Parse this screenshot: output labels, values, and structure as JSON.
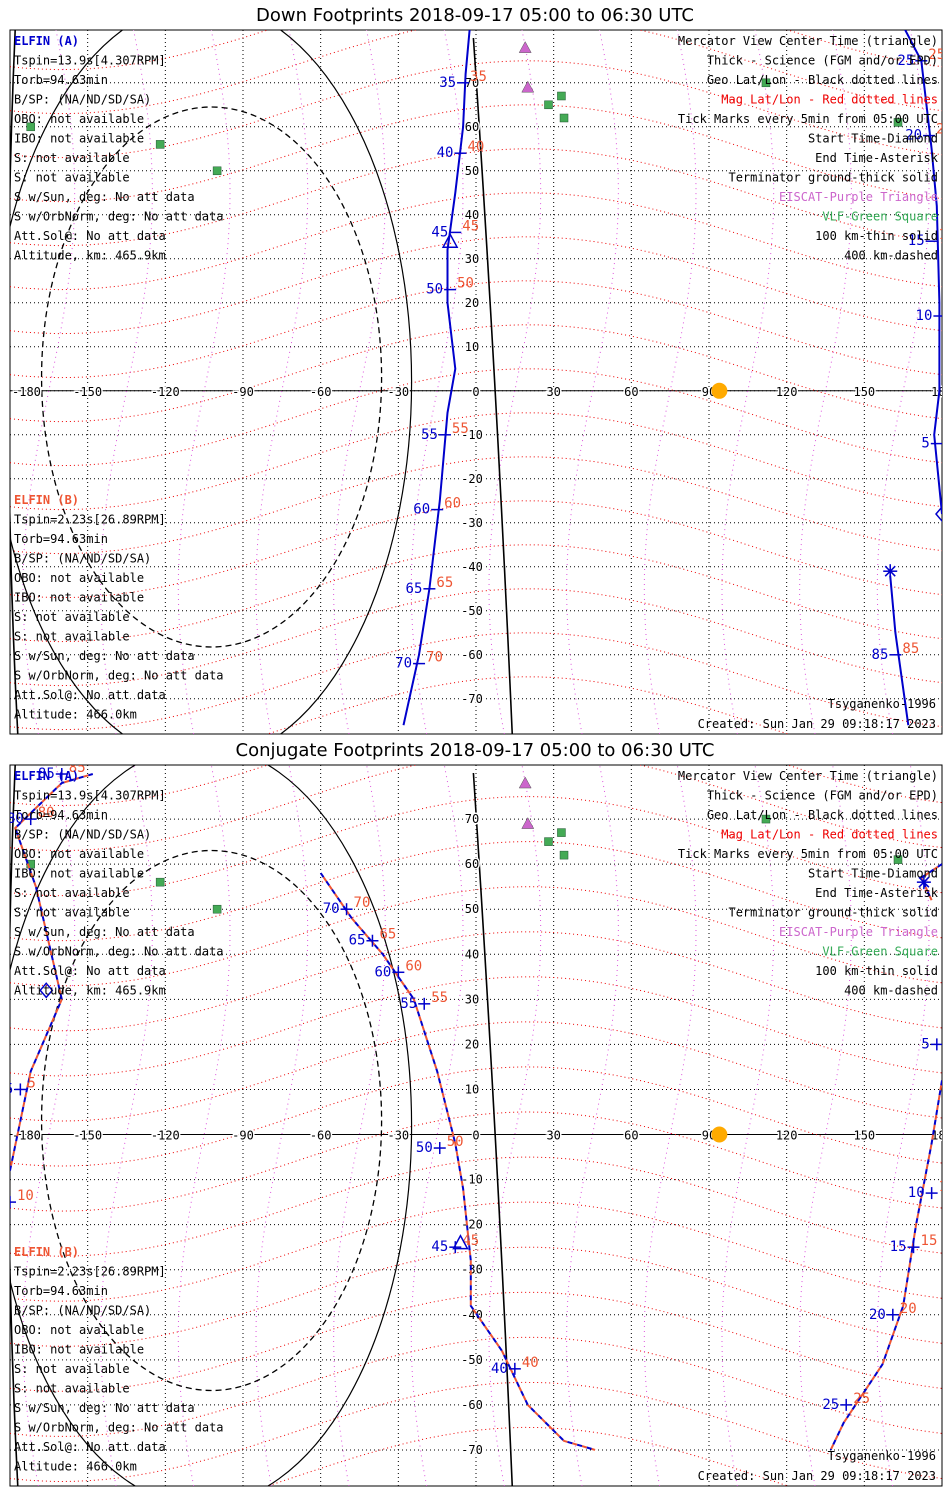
{
  "panels": [
    {
      "title": "Down Footprints 2018-09-17 05:00 to 06:30 UTC",
      "elfin_a": {
        "name": "ELFIN (A)",
        "lines": [
          "Tspin=13.9s[4.307RPM]",
          "Torb=94.63min",
          "B/SP: (NA/ND/SD/SA)",
          "OBO: not available",
          "IBO: not available",
          "S: not available",
          "S: not available",
          "S w/Sun, deg: No att data",
          "S w/OrbNorm, deg: No att data",
          "Att.Sol@: No att data",
          "Altitude, km: 465.9km"
        ]
      },
      "elfin_b": {
        "name": "ELFIN (B)",
        "lines": [
          "Tspin=2.23s[26.89RPM]",
          "Torb=94.63min",
          "B/SP: (NA/ND/SD/SA)",
          "OBO: not available",
          "IBO: not available",
          "S: not available",
          "S: not available",
          "S w/Sun, deg: No att data",
          "S w/OrbNorm, deg: No att data",
          "Att.Sol@: No att data",
          "Altitude: 466.0km"
        ]
      }
    },
    {
      "title": "Conjugate Footprints 2018-09-17 05:00 to 06:30 UTC",
      "elfin_a": {
        "name": "ELFIN (A)",
        "lines": [
          "Tspin=13.9s[4.307RPM]",
          "Torb=94.63min",
          "B/SP: (NA/ND/SD/SA)",
          "OBO: not available",
          "IBO: not available",
          "S: not available",
          "S: not available",
          "S w/Sun, deg: No att data",
          "S w/OrbNorm, deg: No att data",
          "Att.Sol@: No att data",
          "Altitude, km: 465.9km"
        ]
      },
      "elfin_b": {
        "name": "ELFIN (B)",
        "lines": [
          "Tspin=2.23s[26.89RPM]",
          "Torb=94.63min",
          "B/SP: (NA/ND/SD/SA)",
          "OBO: not available",
          "IBO: not available",
          "S: not available",
          "S: not available",
          "S w/Sun, deg: No att data",
          "S w/OrbNorm, deg: No att data",
          "Att.Sol@: No att data",
          "Altitude: 466.0km"
        ]
      }
    }
  ],
  "legend": [
    {
      "text": "Mercator View Center Time (triangle)",
      "color": "#000000"
    },
    {
      "text": "Thick - Science (FGM and/or EPD)",
      "color": "#000000"
    },
    {
      "text": "Geo Lat/Lon - Black dotted lines",
      "color": "#000000"
    },
    {
      "text": "Mag Lat/Lon - Red dotted lines",
      "color": "#ee0000"
    },
    {
      "text": "Tick Marks every 5min from 05:00 UTC",
      "color": "#000000"
    },
    {
      "text": "Start Time-Diamond",
      "color": "#000000"
    },
    {
      "text": "End Time-Asterisk",
      "color": "#000000"
    },
    {
      "text": "Terminator ground-thick solid",
      "color": "#000000"
    },
    {
      "text": "EISCAT-Purple Triangle",
      "color": "#cc66cc"
    },
    {
      "text": "VLF-Green Square",
      "color": "#33aa55"
    },
    {
      "text": "100 km-thin solid",
      "color": "#000000"
    },
    {
      "text": "400 km-dashed",
      "color": "#000000"
    }
  ],
  "model_label": "Tsyganenko-1996",
  "created_label": "Created: Sun Jan 29 09:18:17 2023",
  "lon_ticks": [
    "-180",
    "-150",
    "-120",
    "-90",
    "-60",
    "-30",
    "0",
    "30",
    "60",
    "90",
    "120",
    "150",
    "180"
  ],
  "lat_ticks": [
    "70",
    "60",
    "50",
    "40",
    "30",
    "20",
    "10",
    "-10",
    "-20",
    "-30",
    "-40",
    "-50",
    "-60",
    "-70"
  ],
  "map": {
    "lon_min": -180,
    "lon_max": 180,
    "lat_min": -78,
    "lat_max": 82,
    "sun": {
      "lon": 94,
      "lat": 0
    }
  },
  "eiscat_sites": [
    {
      "lon": 19,
      "lat": 78
    },
    {
      "lon": 20,
      "lat": 69
    }
  ],
  "vlf_sites": [
    {
      "lon": 33,
      "lat": 67
    },
    {
      "lon": 34,
      "lat": 62
    },
    {
      "lon": 28,
      "lat": 65
    },
    {
      "lon": 112,
      "lat": 70
    },
    {
      "lon": 163,
      "lat": 61
    },
    {
      "lon": -172,
      "lat": 60
    },
    {
      "lon": -122,
      "lat": 56
    },
    {
      "lon": -100,
      "lat": 50
    }
  ],
  "colors": {
    "elfin_a": "#0000cc",
    "elfin_b": "#ee5533",
    "geo_grid": "#000000",
    "mag_grid": "#ee0000",
    "meridian_grid": "#dd55dd",
    "eiscat": "#cc66cc",
    "vlf": "#44aa55",
    "sun": "#ffaa00"
  },
  "tracks": [
    {
      "segments": [
        [
          [
            -2,
            85
          ],
          [
            -4,
            72
          ],
          [
            -5,
            60
          ],
          [
            -8,
            45
          ],
          [
            -11,
            32
          ],
          [
            -11,
            20
          ],
          [
            -8,
            5
          ],
          [
            -11,
            -5
          ],
          [
            -14,
            -25
          ],
          [
            -18,
            -45
          ],
          [
            -22,
            -60
          ],
          [
            -28,
            -76
          ]
        ],
        [
          [
            164,
            84
          ],
          [
            172,
            75
          ],
          [
            176,
            55
          ],
          [
            178,
            42
          ],
          [
            179,
            20
          ],
          [
            179,
            0
          ],
          [
            177,
            -10
          ],
          [
            180,
            -28
          ]
        ],
        [
          [
            160,
            -42
          ],
          [
            162,
            -55
          ],
          [
            167,
            -76
          ]
        ]
      ],
      "dashed": false,
      "ticks": [
        {
          "label": "35",
          "lon": -5,
          "lat": 70
        },
        {
          "label": "40",
          "lon": -6,
          "lat": 54
        },
        {
          "label": "45",
          "lon": -8,
          "lat": 36
        },
        {
          "label": "50",
          "lon": -10,
          "lat": 23
        },
        {
          "label": "55",
          "lon": -12,
          "lat": -10
        },
        {
          "label": "60",
          "lon": -15,
          "lat": -27
        },
        {
          "label": "65",
          "lon": -18,
          "lat": -45
        },
        {
          "label": "70",
          "lon": -22,
          "lat": -62
        },
        {
          "label": "25",
          "lon": 172,
          "lat": 75
        },
        {
          "label": "20",
          "lon": 175,
          "lat": 58
        },
        {
          "label": "15",
          "lon": 176,
          "lat": 34
        },
        {
          "label": "10",
          "lon": 179,
          "lat": 17
        },
        {
          "label": "5",
          "lon": 178,
          "lat": -12
        },
        {
          "label": "85",
          "lon": 162,
          "lat": -60
        }
      ],
      "start": {
        "lon": 180,
        "lat": -28
      },
      "end": {
        "lon": 160,
        "lat": -41
      },
      "center": {
        "lon": -10,
        "lat": 34
      }
    },
    {
      "segments": [
        [
          [
            -180,
            -8
          ],
          [
            -172,
            14
          ],
          [
            -160,
            30
          ],
          [
            -170,
            55
          ],
          [
            -178,
            68
          ],
          [
            -160,
            78
          ],
          [
            -148,
            80
          ]
        ],
        [
          [
            -60,
            58
          ],
          [
            -48,
            48
          ],
          [
            -36,
            40
          ],
          [
            -24,
            30
          ],
          [
            -15,
            14
          ],
          [
            -8,
            -2
          ],
          [
            -5,
            -12
          ],
          [
            -2,
            -28
          ],
          [
            -2,
            -38
          ],
          [
            10,
            -48
          ],
          [
            20,
            -60
          ],
          [
            34,
            -68
          ],
          [
            46,
            -70
          ]
        ],
        [
          [
            180,
            12
          ],
          [
            176,
            -2
          ],
          [
            170,
            -20
          ],
          [
            165,
            -38
          ],
          [
            157,
            -51
          ],
          [
            142,
            -64
          ],
          [
            137,
            -70
          ]
        ],
        [
          [
            180,
            60
          ],
          [
            172,
            57
          ],
          [
            176,
            52
          ]
        ]
      ],
      "dashed": true,
      "ticks": [
        {
          "label": "85",
          "lon": -160,
          "lat": 80
        },
        {
          "label": "80",
          "lon": -172,
          "lat": 70
        },
        {
          "label": "5",
          "lon": -176,
          "lat": 10
        },
        {
          "label": "10",
          "lon": -180,
          "lat": -15
        },
        {
          "label": "70",
          "lon": -50,
          "lat": 50
        },
        {
          "label": "65",
          "lon": -40,
          "lat": 43
        },
        {
          "label": "60",
          "lon": -30,
          "lat": 36
        },
        {
          "label": "55",
          "lon": -20,
          "lat": 29
        },
        {
          "label": "50",
          "lon": -14,
          "lat": -3
        },
        {
          "label": "45",
          "lon": -8,
          "lat": -25
        },
        {
          "label": "40",
          "lon": 15,
          "lat": -52
        },
        {
          "label": "5",
          "lon": 178,
          "lat": 20
        },
        {
          "label": "10",
          "lon": 176,
          "lat": -13
        },
        {
          "label": "15",
          "lon": 169,
          "lat": -25
        },
        {
          "label": "20",
          "lon": 161,
          "lat": -40
        },
        {
          "label": "25",
          "lon": 143,
          "lat": -60
        }
      ],
      "start": {
        "lon": -166,
        "lat": 32
      },
      "end": {
        "lon": 173,
        "lat": 56
      },
      "center": {
        "lon": -6,
        "lat": -24
      }
    }
  ]
}
